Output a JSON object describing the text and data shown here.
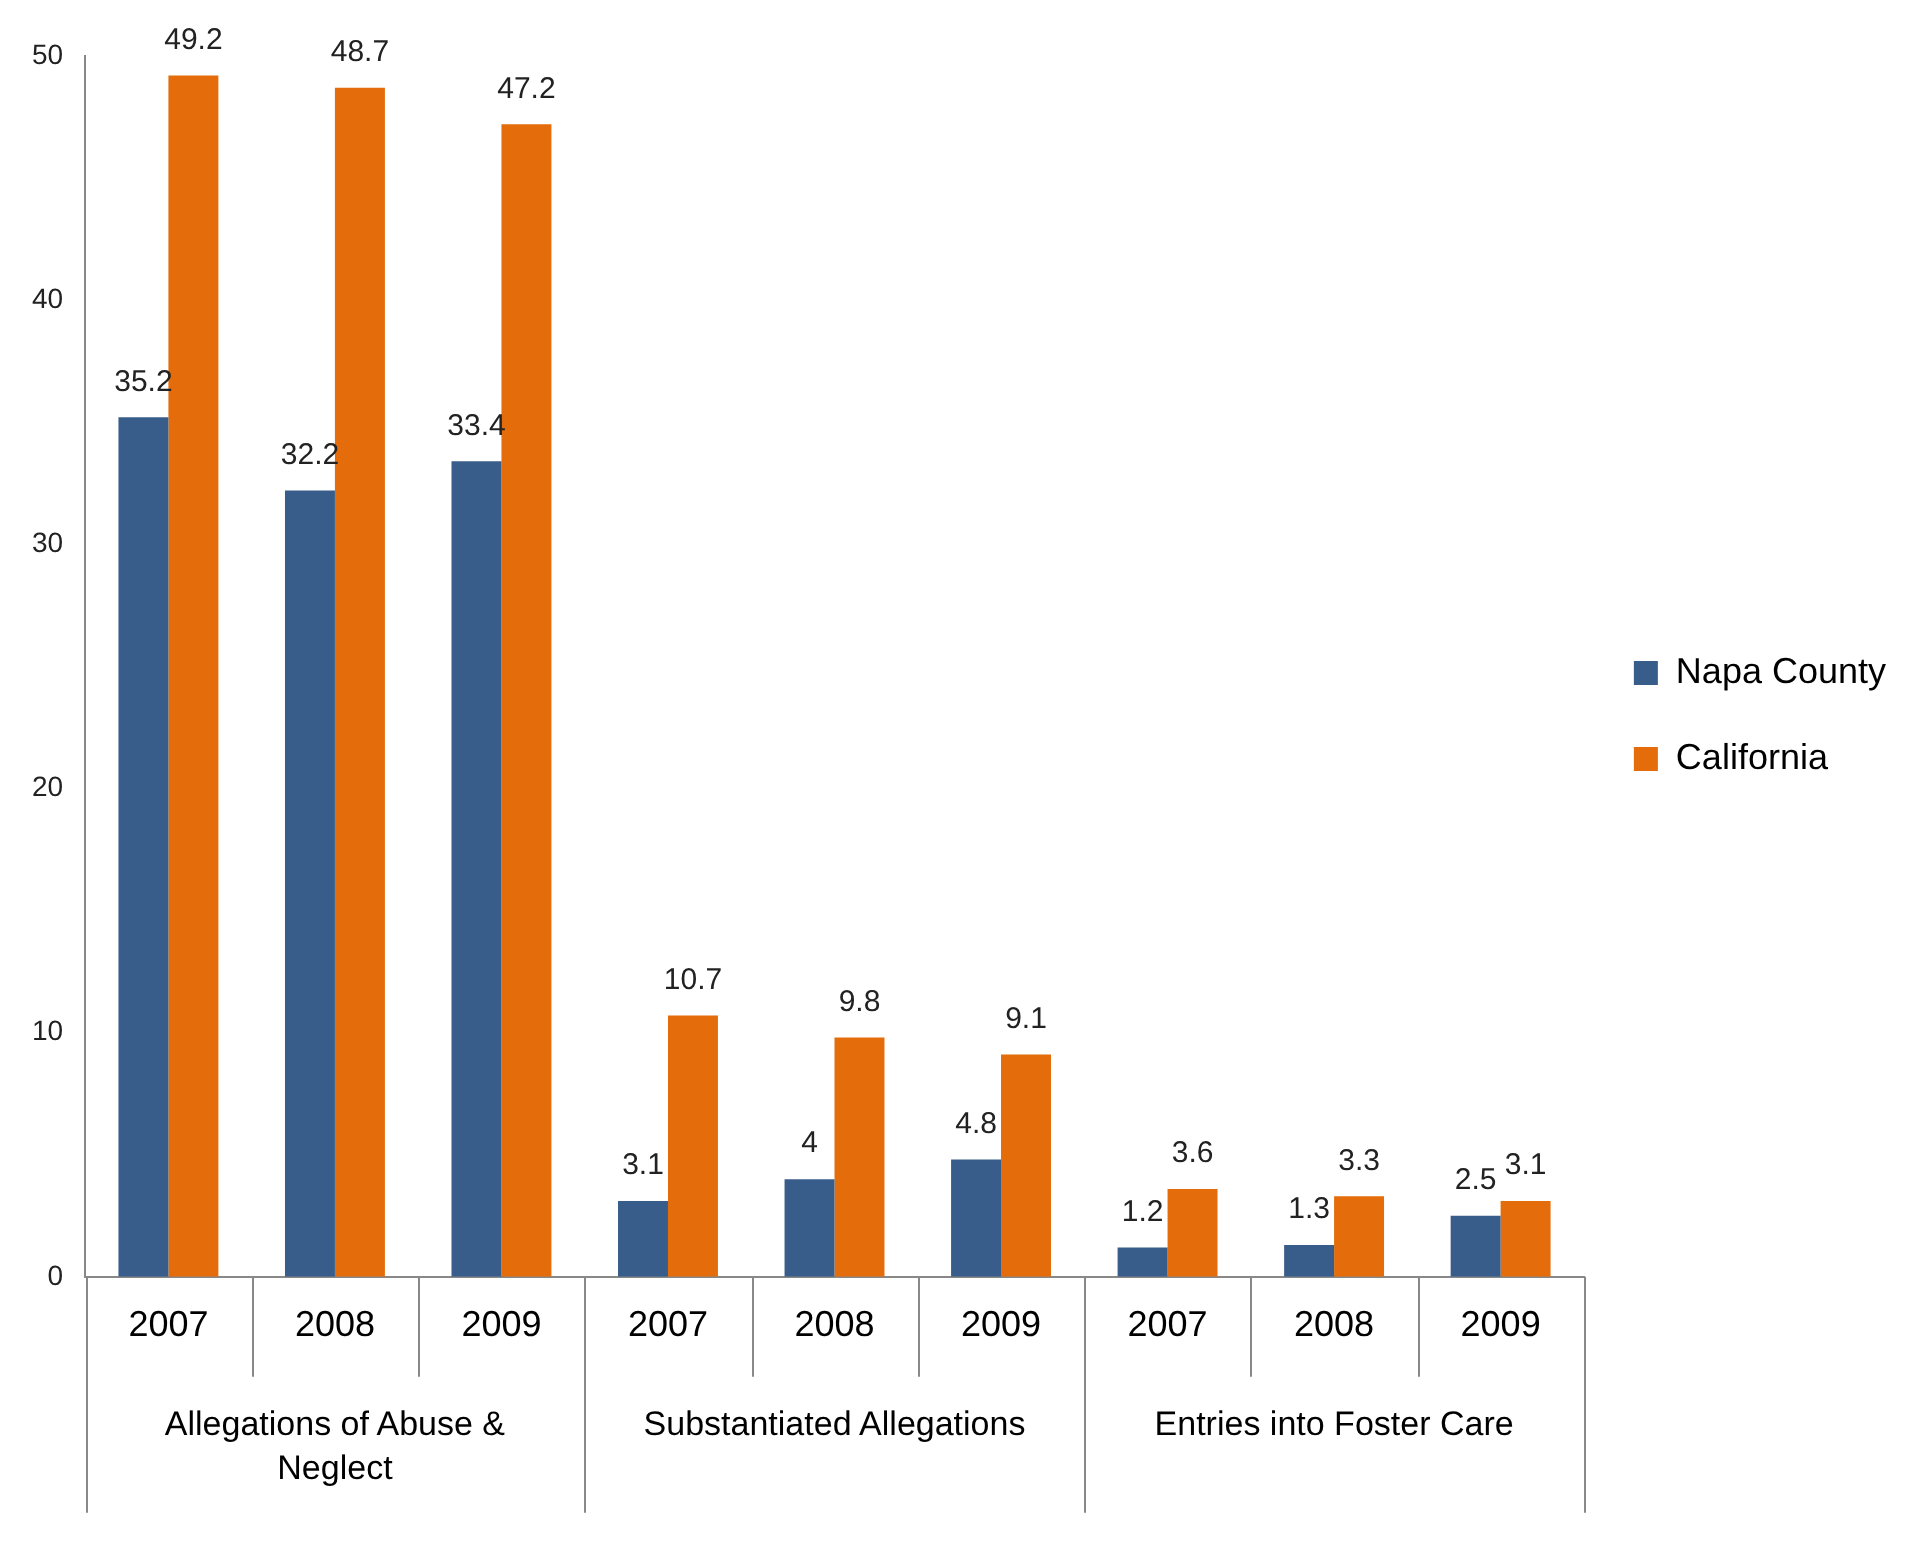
{
  "chart_data": {
    "type": "bar",
    "categories": [
      "2007",
      "2008",
      "2009",
      "2007",
      "2008",
      "2009",
      "2007",
      "2008",
      "2009"
    ],
    "series": [
      {
        "name": "Napa County",
        "color": "#385d8a",
        "values": [
          35.2,
          32.2,
          33.4,
          3.1,
          4,
          4.8,
          1.2,
          1.3,
          2.5
        ]
      },
      {
        "name": "California",
        "color": "#e46c0a",
        "values": [
          49.2,
          48.7,
          47.2,
          10.7,
          9.8,
          9.1,
          3.6,
          3.3,
          3.1
        ]
      }
    ],
    "annotations": [
      "Allegations of Abuse & Neglect",
      "Substantiated Allegations",
      "Entries into Foster Care"
    ],
    "ylim": [
      0,
      50
    ],
    "yticks": [
      0,
      10,
      20,
      30,
      40,
      50
    ],
    "grid": false,
    "legend": "right",
    "data_labels": true
  }
}
